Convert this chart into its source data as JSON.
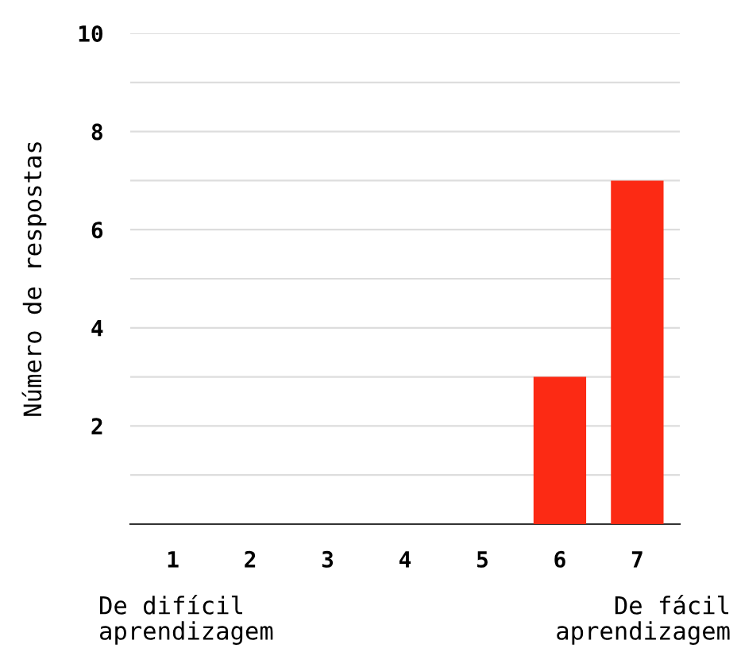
{
  "chart_data": {
    "type": "bar",
    "ylabel": "Número de respostas",
    "categories": [
      "1",
      "2",
      "3",
      "4",
      "5",
      "6",
      "7"
    ],
    "values": [
      0,
      0,
      0,
      0,
      0,
      3,
      7
    ],
    "color": "#fc2a14",
    "ylim": [
      0,
      10
    ],
    "yticks": [
      {
        "value": 0,
        "label": null
      },
      {
        "value": 1,
        "label": null
      },
      2,
      {
        "value": 3,
        "label": null
      },
      4,
      {
        "value": 5,
        "label": null
      },
      6,
      {
        "value": 7,
        "label": null
      },
      8,
      {
        "value": 9,
        "label": null
      },
      10
    ],
    "grid": "y",
    "annotations": [
      "De difícil\naprendizagem",
      "De fácil\naprendizagem"
    ]
  }
}
